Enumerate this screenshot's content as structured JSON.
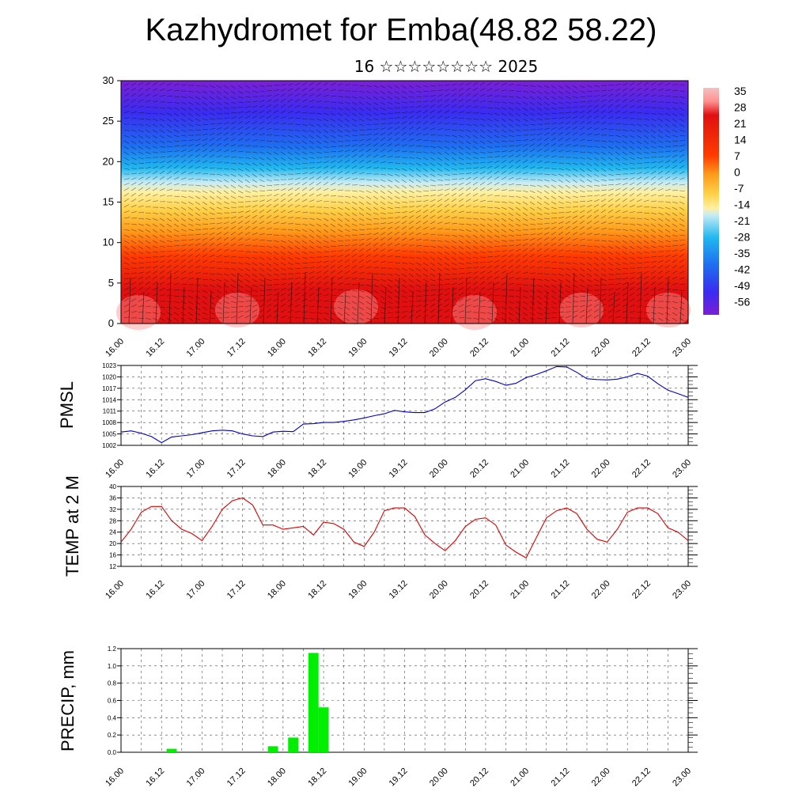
{
  "header": {
    "title": "Kazhydromet for Emba(48.82 58.22)",
    "subtitle": "16 ☆☆☆☆☆☆☆☆ 2025"
  },
  "colors": {
    "pmsl_line": "#0000cc",
    "temp_line": "#dd0000",
    "precip_bar": "#00ee00",
    "colormap": [
      "#7b1fd6",
      "#3a2cf0",
      "#1e6ef0",
      "#21b8f0",
      "#c8ecf5",
      "#fff0a0",
      "#ffd24a",
      "#ff9a1a",
      "#ff3c00",
      "#e01010",
      "#ff9090",
      "#f4c0c0"
    ]
  },
  "chart_data": [
    {
      "type": "heatmap",
      "description": "Upper air temperature cross-section with wind barbs",
      "ylim": [
        0,
        30
      ],
      "yticks": [
        0,
        5,
        10,
        15,
        20,
        25,
        30
      ],
      "x_tick_labels": [
        "16.00",
        "16.12",
        "17.00",
        "17.12",
        "18.00",
        "18.12",
        "19.00",
        "19.12",
        "20.00",
        "20.12",
        "21.00",
        "21.12",
        "22.00",
        "22.12",
        "23.00"
      ],
      "colorbar_labels": [
        "35",
        "28",
        "21",
        "14",
        "7",
        "0",
        "-7",
        "-14",
        "-21",
        "-28",
        "-35",
        "-42",
        "-49",
        "-56"
      ],
      "legend": "colorbar right"
    },
    {
      "type": "line",
      "ylabel": "PMSL",
      "ylim": [
        1002,
        1023
      ],
      "yticks": [
        1002,
        1005,
        1008,
        1011,
        1014,
        1017,
        1020,
        1023
      ],
      "x_tick_labels": [
        "16.00",
        "16.12",
        "17.00",
        "17.12",
        "18.00",
        "18.12",
        "19.00",
        "19.12",
        "20.00",
        "20.12",
        "21.00",
        "21.12",
        "22.00",
        "22.12",
        "23.00"
      ],
      "x_range": [
        0,
        168
      ],
      "grid": true,
      "series": [
        {
          "x": [
            0,
            3,
            6,
            9,
            12,
            15,
            18,
            21,
            24,
            27,
            30,
            33,
            36,
            39,
            42,
            45,
            48,
            51,
            54,
            57,
            60,
            63,
            66,
            69,
            72,
            75,
            78,
            81,
            84,
            87,
            90,
            93,
            96,
            99,
            102,
            105,
            108,
            111,
            114,
            117,
            120,
            123,
            126,
            129,
            132,
            135,
            138,
            141,
            144,
            147,
            150,
            153,
            156,
            159,
            162,
            165,
            168
          ],
          "values": [
            1005.5,
            1005.8,
            1005.2,
            1004.3,
            1002.7,
            1004.2,
            1004.5,
            1004.8,
            1005.3,
            1005.8,
            1006.0,
            1005.8,
            1005.0,
            1004.5,
            1004.3,
            1005.5,
            1005.7,
            1005.6,
            1007.6,
            1007.7,
            1008.0,
            1008.0,
            1008.3,
            1008.7,
            1009.2,
            1009.8,
            1010.3,
            1011.2,
            1010.8,
            1010.6,
            1010.6,
            1011.6,
            1013.4,
            1014.6,
            1016.6,
            1019.0,
            1019.5,
            1018.8,
            1017.8,
            1018.3,
            1019.8,
            1020.6,
            1021.6,
            1022.7,
            1022.6,
            1021.2,
            1019.5,
            1019.3,
            1019.2,
            1019.4,
            1020.0,
            1020.9,
            1020.2,
            1018.2,
            1016.5,
            1015.6,
            1014.6
          ]
        }
      ]
    },
    {
      "type": "line",
      "ylabel": "TEMP at 2 M",
      "ylim": [
        12,
        40
      ],
      "yticks": [
        12,
        16,
        20,
        24,
        28,
        32,
        36,
        40
      ],
      "x_tick_labels": [
        "16.00",
        "16.12",
        "17.00",
        "17.12",
        "18.00",
        "18.12",
        "19.00",
        "19.12",
        "20.00",
        "20.12",
        "21.00",
        "21.12",
        "22.00",
        "22.12",
        "23.00"
      ],
      "x_range": [
        0,
        168
      ],
      "grid": true,
      "series": [
        {
          "x": [
            0,
            3,
            6,
            9,
            12,
            15,
            18,
            21,
            24,
            27,
            30,
            33,
            36,
            39,
            42,
            45,
            48,
            51,
            54,
            57,
            60,
            63,
            66,
            69,
            72,
            75,
            78,
            81,
            84,
            87,
            90,
            93,
            96,
            99,
            102,
            105,
            108,
            111,
            114,
            117,
            120,
            123,
            126,
            129,
            132,
            135,
            138,
            141,
            144,
            147,
            150,
            153,
            156,
            159,
            162,
            165,
            168
          ],
          "values": [
            20.5,
            25,
            31,
            33,
            33,
            28,
            25,
            23.5,
            21,
            26,
            32,
            35,
            36,
            33.5,
            26.5,
            26.5,
            25,
            25.5,
            26,
            23,
            27.5,
            27,
            25,
            20.5,
            19,
            24,
            31.5,
            32.5,
            32.5,
            29.5,
            23,
            20,
            17.5,
            21,
            26,
            28.5,
            29,
            26.5,
            19.5,
            17,
            15,
            22,
            29,
            31.5,
            32.5,
            30.5,
            25,
            21.5,
            20.5,
            25,
            31,
            32.5,
            32.5,
            30.5,
            25.5,
            24,
            21
          ]
        }
      ]
    },
    {
      "type": "bar",
      "ylabel": "PRECIP, mm",
      "ylim": [
        0,
        1.2
      ],
      "yticks": [
        "0.0",
        "0.2",
        "0.4",
        "0.6",
        "0.8",
        "1.0",
        "1.2"
      ],
      "x_tick_labels": [
        "16.00",
        "16.12",
        "17.00",
        "17.12",
        "18.00",
        "18.12",
        "19.00",
        "19.12",
        "20.00",
        "20.12",
        "21.00",
        "21.12",
        "22.00",
        "22.12",
        "23.00"
      ],
      "x_range": [
        0,
        168
      ],
      "grid": true,
      "bars": [
        {
          "x": 15,
          "value": 0.04
        },
        {
          "x": 45,
          "value": 0.07
        },
        {
          "x": 51,
          "value": 0.17
        },
        {
          "x": 57,
          "value": 1.15
        },
        {
          "x": 60,
          "value": 0.52
        }
      ]
    }
  ]
}
